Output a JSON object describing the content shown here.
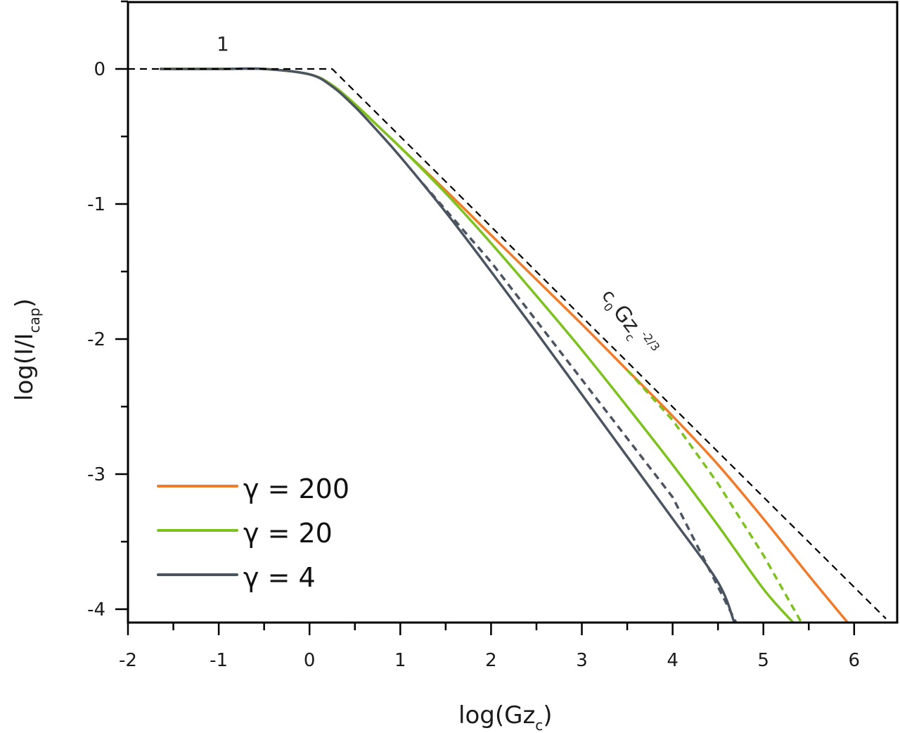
{
  "chart_data": {
    "type": "line",
    "title": "",
    "xlabel": "log(Gz_c)",
    "ylabel": "log(I/I_cap)",
    "xlim": [
      -2,
      6.47
    ],
    "ylim": [
      -4.1,
      0.5
    ],
    "x_ticks": [
      -2,
      -1,
      0,
      1,
      2,
      3,
      4,
      5,
      6
    ],
    "x_tick_labels": [
      "-2",
      "-1",
      "0",
      "1",
      "2",
      "3",
      "4",
      "5",
      "6"
    ],
    "y_ticks": [
      0,
      -1,
      -2,
      -3,
      -4
    ],
    "y_tick_labels": [
      "0",
      "-1",
      "-2",
      "-3",
      "-4"
    ],
    "grid": false,
    "legend_position": "lower left",
    "annotations": [
      {
        "text": "1",
        "x": -0.95,
        "y": 0.18,
        "note": "plateau asymptote label"
      },
      {
        "text": "c0 Gz_c^-2/3",
        "x": 3.2,
        "y": -1.9,
        "rotation": 37,
        "note": "slope asymptote label"
      }
    ],
    "asymptote": {
      "name": "asymptote (1 and c0 Gz_c^-2/3)",
      "style": "dashed",
      "color": "#000000",
      "x": [
        -2.0,
        0.25,
        6.35
      ],
      "y": [
        0.0,
        0.0,
        -4.07
      ]
    },
    "series": [
      {
        "name": "γ = 200",
        "color": "#f07b2a",
        "style": "solid",
        "x": [
          -1.65,
          -1.0,
          -0.5,
          0.0,
          0.25,
          0.5,
          0.75,
          1.0,
          1.5,
          2.0,
          2.5,
          3.0,
          3.5,
          4.0,
          4.5,
          5.0,
          5.5,
          5.93
        ],
        "y": [
          0.0,
          0.0,
          0.0,
          -0.04,
          -0.12,
          -0.26,
          -0.42,
          -0.58,
          -0.9,
          -1.23,
          -1.56,
          -1.89,
          -2.23,
          -2.57,
          -2.93,
          -3.33,
          -3.75,
          -4.1
        ]
      },
      {
        "name": "γ = 20",
        "color": "#7dc21e",
        "style": "solid",
        "x": [
          -1.65,
          -1.0,
          -0.5,
          0.0,
          0.25,
          0.5,
          0.75,
          1.0,
          1.5,
          2.0,
          2.5,
          3.0,
          3.5,
          4.0,
          4.5,
          5.0,
          5.33
        ],
        "y": [
          0.0,
          0.0,
          0.0,
          -0.04,
          -0.12,
          -0.26,
          -0.42,
          -0.58,
          -0.92,
          -1.29,
          -1.68,
          -2.08,
          -2.5,
          -2.93,
          -3.38,
          -3.85,
          -4.1
        ]
      },
      {
        "name": "γ = 20 (asymptote)",
        "color": "#7dc21e",
        "style": "dashed",
        "legend": false,
        "x": [
          3.5,
          4.0,
          4.5,
          5.0,
          5.42
        ],
        "y": [
          -2.23,
          -2.6,
          -3.07,
          -3.6,
          -4.1
        ]
      },
      {
        "name": "γ = 4",
        "color": "#4a5561",
        "style": "solid",
        "x": [
          -1.65,
          -1.0,
          -0.5,
          0.0,
          0.25,
          0.5,
          0.75,
          1.0,
          1.5,
          2.0,
          2.5,
          3.0,
          3.5,
          4.0,
          4.5,
          4.68
        ],
        "y": [
          0.0,
          0.0,
          0.0,
          -0.04,
          -0.13,
          -0.28,
          -0.46,
          -0.65,
          -1.06,
          -1.5,
          -1.95,
          -2.41,
          -2.87,
          -3.33,
          -3.8,
          -4.1
        ]
      },
      {
        "name": "γ = 4 (asymptote)",
        "color": "#4a5561",
        "style": "dashed",
        "legend": false,
        "x": [
          1.25,
          2.0,
          3.0,
          4.0,
          4.7
        ],
        "y": [
          -0.85,
          -1.43,
          -2.3,
          -3.17,
          -4.1
        ]
      }
    ],
    "legend": [
      {
        "label": "γ = 200",
        "color": "#f07b2a"
      },
      {
        "label": "γ = 20",
        "color": "#7dc21e"
      },
      {
        "label": "γ = 4",
        "color": "#4a5561"
      }
    ],
    "axis_labels": {
      "x_main": "log(Gz",
      "x_sub": "c",
      "x_close": ")",
      "y_main": "log(I/I",
      "y_sub": "cap",
      "y_close": ")"
    },
    "annotation_text": {
      "plateau": "1",
      "slope_c": "c",
      "slope_c_sub": "0",
      "slope_gz": "Gz",
      "slope_gz_sub": "c",
      "slope_exp": "-2/3"
    }
  }
}
